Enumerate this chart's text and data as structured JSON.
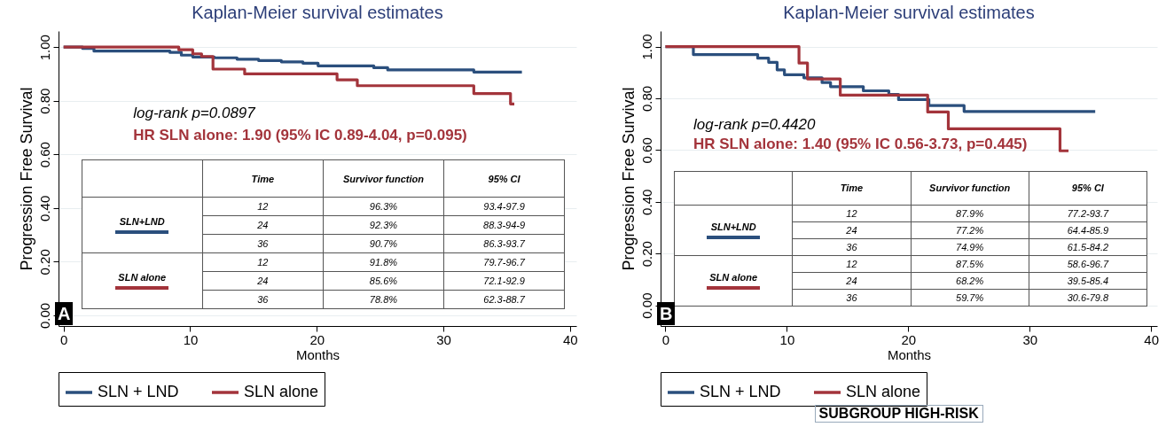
{
  "chart_data": [
    {
      "type": "step",
      "title": "Kaplan-Meier survival estimates",
      "xlabel": "Months",
      "ylabel": "Progression Free Survival",
      "xlim": [
        -0.4,
        40.5
      ],
      "ylim": [
        -0.04,
        1.06
      ],
      "xticks": [
        0,
        10,
        20,
        30,
        40
      ],
      "yticks": [
        {
          "value": 0,
          "label": "0.00"
        },
        {
          "value": 0.2,
          "label": "0.20"
        },
        {
          "value": 0.4,
          "label": "0.40"
        },
        {
          "value": 0.6,
          "label": "0.60"
        },
        {
          "value": 0.8,
          "label": "0.80"
        },
        {
          "value": 1,
          "label": "1.00"
        }
      ],
      "grid": "y",
      "legend": "bottom",
      "series": [
        {
          "name": "SLN + LND",
          "color": "#2b4f7d",
          "x": [
            0,
            1.5,
            2.4,
            8.4,
            9.3,
            10.2,
            11.9,
            13.7,
            15.4,
            17.2,
            18.9,
            20.1,
            24.5,
            25.6,
            32.4,
            36.2
          ],
          "values": [
            1.0,
            0.995,
            0.985,
            0.98,
            0.97,
            0.963,
            0.96,
            0.955,
            0.95,
            0.945,
            0.94,
            0.93,
            0.923,
            0.915,
            0.907,
            0.907
          ]
        },
        {
          "name": "SLN alone",
          "color": "#a3343b",
          "x": [
            0,
            9.1,
            10.2,
            10.9,
            11.8,
            14.3,
            21.6,
            23.2,
            32.4,
            35.3,
            35.6
          ],
          "values": [
            1.0,
            0.99,
            0.975,
            0.965,
            0.918,
            0.9,
            0.878,
            0.856,
            0.827,
            0.788,
            0.788
          ]
        }
      ],
      "annotations": [
        "log-rank p=0.0897",
        "HR SLN alone: 1.90 (95% IC 0.89-4.04, p=0.095)",
        "A",
        "Time",
        "Survivor function",
        "95% CI",
        "SLN+LND",
        "12",
        "96.3%",
        "93.4-97.9",
        "24",
        "92.3%",
        "88.3-94-9",
        "36",
        "90.7%",
        "86.3-93.7",
        "SLN alone",
        "12",
        "91.8%",
        "79.7-96.7",
        "24",
        "85.6%",
        "72.1-92.9",
        "36",
        "78.8%",
        "62.3-88.7"
      ]
    },
    {
      "type": "step",
      "title": "Kaplan-Meier survival estimates",
      "xlabel": "Months",
      "ylabel": "Progression Free Survival",
      "xlim": [
        -0.4,
        40.5
      ],
      "ylim": [
        -0.08,
        1.06
      ],
      "xticks": [
        0,
        10,
        20,
        30,
        40
      ],
      "yticks": [
        {
          "value": 0,
          "label": "0.00"
        },
        {
          "value": 0.2,
          "label": "0.20"
        },
        {
          "value": 0.4,
          "label": "0.40"
        },
        {
          "value": 0.6,
          "label": "0.60"
        },
        {
          "value": 0.8,
          "label": "0.80"
        },
        {
          "value": 1,
          "label": "1.00"
        }
      ],
      "grid": "y",
      "legend": "bottom",
      "series": [
        {
          "name": "SLN + LND",
          "color": "#2b4f7d",
          "x": [
            0,
            2.3,
            7.6,
            8.5,
            9.2,
            9.8,
            11.4,
            12.9,
            13.6,
            16.3,
            18.4,
            19.2,
            21.7,
            24.6,
            35.4
          ],
          "values": [
            1.0,
            0.969,
            0.955,
            0.939,
            0.91,
            0.891,
            0.879,
            0.861,
            0.845,
            0.829,
            0.815,
            0.795,
            0.772,
            0.749,
            0.749
          ]
        },
        {
          "name": "SLN alone",
          "color": "#a3343b",
          "x": [
            0,
            11.0,
            11.7,
            14.4,
            21.6,
            23.3,
            32.5,
            33.2
          ],
          "values": [
            1.0,
            0.936,
            0.875,
            0.812,
            0.747,
            0.682,
            0.597,
            0.597
          ]
        }
      ],
      "annotations": [
        "log-rank p=0.4420",
        "HR SLN alone: 1.40 (95% IC 0.56-3.73, p=0.445)",
        "B",
        "Time",
        "Survivor function",
        "95% CI",
        "SLN+LND",
        "12",
        "87.9%",
        "77.2-93.7",
        "24",
        "77.2%",
        "64.4-85.9",
        "36",
        "74.9%",
        "61.5-84.2",
        "SLN alone",
        "12",
        "87.5%",
        "58.6-96.7",
        "24",
        "68.2%",
        "39.5-85.4",
        "36",
        "59.7%",
        "30.6-79.8",
        "SUBGROUP HIGH-RISK"
      ]
    }
  ]
}
